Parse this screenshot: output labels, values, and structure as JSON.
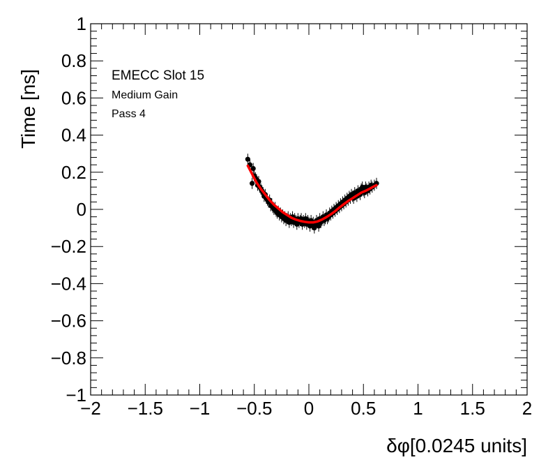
{
  "chart_data": {
    "type": "scatter",
    "title": "",
    "xlabel": "δφ[0.0245 units]",
    "ylabel": "Time [ns]",
    "xlim": [
      -2,
      2
    ],
    "ylim": [
      -1,
      1
    ],
    "x_ticks": [
      -2,
      -1.5,
      -1,
      -0.5,
      0,
      0.5,
      1,
      1.5,
      2
    ],
    "x_tick_labels": [
      "−2",
      "−1.5",
      "−1",
      "−0.5",
      "0",
      "0.5",
      "1",
      "1.5",
      "2"
    ],
    "y_ticks": [
      -1,
      -0.8,
      -0.6,
      -0.4,
      -0.2,
      0,
      0.2,
      0.4,
      0.6,
      0.8,
      1
    ],
    "y_tick_labels": [
      "−1",
      "−0.8",
      "−0.6",
      "−0.4",
      "−0.2",
      "0",
      "0.2",
      "0.4",
      "0.6",
      "0.8",
      "1"
    ],
    "grid": false,
    "annotations": [
      "EMECC Slot 15",
      "Medium Gain",
      "Pass 4"
    ],
    "series": [
      {
        "kind": "points",
        "color": "#000000",
        "error": 0.03,
        "x": [
          -0.56,
          -0.54,
          -0.52,
          -0.51,
          -0.5,
          -0.49,
          -0.48,
          -0.47,
          -0.46,
          -0.45,
          -0.44,
          -0.43,
          -0.42,
          -0.41,
          -0.4,
          -0.39,
          -0.38,
          -0.37,
          -0.36,
          -0.35,
          -0.34,
          -0.33,
          -0.32,
          -0.31,
          -0.3,
          -0.29,
          -0.28,
          -0.27,
          -0.26,
          -0.25,
          -0.24,
          -0.23,
          -0.22,
          -0.21,
          -0.2,
          -0.19,
          -0.18,
          -0.17,
          -0.16,
          -0.15,
          -0.14,
          -0.13,
          -0.12,
          -0.11,
          -0.1,
          -0.09,
          -0.08,
          -0.07,
          -0.06,
          -0.05,
          -0.04,
          -0.03,
          -0.02,
          -0.01,
          0.0,
          0.01,
          0.02,
          0.03,
          0.04,
          0.05,
          0.06,
          0.07,
          0.08,
          0.09,
          0.1,
          0.11,
          0.12,
          0.13,
          0.14,
          0.15,
          0.16,
          0.17,
          0.18,
          0.19,
          0.2,
          0.21,
          0.22,
          0.23,
          0.24,
          0.25,
          0.26,
          0.27,
          0.28,
          0.29,
          0.3,
          0.31,
          0.32,
          0.33,
          0.34,
          0.35,
          0.36,
          0.37,
          0.38,
          0.39,
          0.4,
          0.41,
          0.42,
          0.43,
          0.44,
          0.45,
          0.46,
          0.47,
          0.48,
          0.49,
          0.5,
          0.51,
          0.52,
          0.53,
          0.54,
          0.55,
          0.56,
          0.57,
          0.58,
          0.6,
          0.62
        ],
        "y": [
          0.27,
          0.24,
          0.14,
          0.22,
          0.18,
          0.17,
          0.16,
          0.13,
          0.15,
          0.12,
          0.11,
          0.1,
          0.09,
          0.07,
          0.08,
          0.06,
          0.05,
          0.04,
          0.05,
          0.02,
          0.03,
          0.01,
          0.0,
          0.01,
          -0.01,
          -0.02,
          -0.01,
          -0.03,
          -0.02,
          -0.04,
          -0.03,
          -0.05,
          -0.04,
          -0.06,
          -0.05,
          -0.04,
          -0.07,
          -0.05,
          -0.06,
          -0.04,
          -0.07,
          -0.05,
          -0.06,
          -0.08,
          -0.05,
          -0.07,
          -0.06,
          -0.05,
          -0.08,
          -0.06,
          -0.07,
          -0.05,
          -0.08,
          -0.06,
          -0.07,
          -0.09,
          -0.06,
          -0.08,
          -0.07,
          -0.1,
          -0.08,
          -0.06,
          -0.07,
          -0.09,
          -0.05,
          -0.07,
          -0.06,
          -0.04,
          -0.06,
          -0.05,
          -0.03,
          -0.05,
          -0.04,
          -0.02,
          -0.03,
          -0.01,
          -0.02,
          0.0,
          -0.01,
          0.01,
          0.0,
          0.02,
          0.01,
          0.03,
          0.02,
          0.04,
          0.03,
          0.05,
          0.04,
          0.06,
          0.05,
          0.07,
          0.06,
          0.08,
          0.07,
          0.06,
          0.09,
          0.08,
          0.07,
          0.1,
          0.09,
          0.08,
          0.11,
          0.12,
          0.1,
          0.09,
          0.12,
          0.11,
          0.1,
          0.12,
          0.11,
          0.13,
          0.12,
          0.13,
          0.14
        ]
      },
      {
        "kind": "fit",
        "color": "#ff0000",
        "x": [
          -0.56,
          -0.52,
          -0.48,
          -0.44,
          -0.4,
          -0.36,
          -0.32,
          -0.28,
          -0.24,
          -0.2,
          -0.16,
          -0.12,
          -0.08,
          -0.04,
          0.0,
          0.04,
          0.08,
          0.12,
          0.16,
          0.2,
          0.24,
          0.28,
          0.32,
          0.36,
          0.4,
          0.44,
          0.48,
          0.52,
          0.56,
          0.6,
          0.62
        ],
        "y": [
          0.235,
          0.19,
          0.145,
          0.11,
          0.08,
          0.05,
          0.025,
          0.005,
          -0.015,
          -0.03,
          -0.045,
          -0.055,
          -0.062,
          -0.067,
          -0.07,
          -0.07,
          -0.065,
          -0.055,
          -0.042,
          -0.027,
          -0.01,
          0.01,
          0.028,
          0.045,
          0.06,
          0.075,
          0.09,
          0.1,
          0.112,
          0.125,
          0.13
        ]
      }
    ]
  }
}
